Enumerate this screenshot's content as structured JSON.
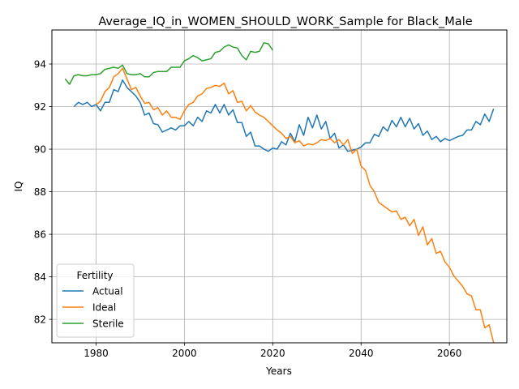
{
  "chart_data": {
    "type": "line",
    "title": "Average_IQ_in_WOMEN_SHOULD_WORK_Sample for Black_Male",
    "xlabel": "Years",
    "ylabel": "IQ",
    "xlim": [
      1970,
      2073
    ],
    "ylim": [
      80.9,
      95.6
    ],
    "xticks": [
      1980,
      2000,
      2020,
      2040,
      2060
    ],
    "yticks": [
      82,
      84,
      86,
      88,
      90,
      92,
      94
    ],
    "grid": true,
    "legend": {
      "title": "Fertility",
      "position": "lower-left"
    },
    "series": [
      {
        "name": "Actual",
        "color": "#1f77b4",
        "x": [
          1975,
          1976,
          1977,
          1978,
          1979,
          1980,
          1981,
          1982,
          1983,
          1984,
          1985,
          1986,
          1987,
          1988,
          1989,
          1990,
          1991,
          1992,
          1993,
          1994,
          1995,
          1996,
          1997,
          1998,
          1999,
          2000,
          2001,
          2002,
          2003,
          2004,
          2005,
          2006,
          2007,
          2008,
          2009,
          2010,
          2011,
          2012,
          2013,
          2014,
          2015,
          2016,
          2017,
          2018,
          2019,
          2020,
          2021,
          2022,
          2023,
          2024,
          2025,
          2026,
          2027,
          2028,
          2029,
          2030,
          2031,
          2032,
          2033,
          2034,
          2035,
          2036,
          2037,
          2038,
          2039,
          2040,
          2041,
          2042,
          2043,
          2044,
          2045,
          2046,
          2047,
          2048,
          2049,
          2050,
          2051,
          2052,
          2053,
          2054,
          2055,
          2056,
          2057,
          2058,
          2059,
          2060,
          2061,
          2062,
          2063,
          2064,
          2065,
          2066,
          2067,
          2068,
          2069,
          2070
        ],
        "y": [
          92.0,
          92.2,
          92.1,
          92.2,
          92.0,
          92.1,
          91.8,
          92.2,
          92.2,
          92.8,
          92.7,
          93.25,
          92.9,
          92.7,
          92.5,
          92.2,
          91.6,
          91.7,
          91.2,
          91.15,
          90.8,
          90.9,
          91.0,
          90.9,
          91.1,
          91.1,
          91.3,
          91.1,
          91.5,
          91.3,
          91.8,
          91.7,
          92.1,
          91.7,
          92.1,
          91.6,
          91.85,
          91.25,
          91.25,
          90.6,
          90.8,
          90.15,
          90.15,
          90.0,
          89.9,
          90.05,
          90.0,
          90.35,
          90.2,
          90.75,
          90.35,
          91.15,
          90.65,
          91.5,
          91.0,
          91.6,
          90.95,
          91.3,
          90.5,
          90.75,
          90.05,
          90.2,
          89.9,
          89.95,
          90.0,
          90.1,
          90.3,
          90.3,
          90.7,
          90.6,
          91.05,
          90.85,
          91.35,
          91.05,
          91.5,
          91.05,
          91.45,
          90.95,
          91.2,
          90.65,
          90.85,
          90.45,
          90.6,
          90.35,
          90.5,
          90.4,
          90.5,
          90.6,
          90.65,
          90.9,
          90.9,
          91.3,
          91.15,
          91.65,
          91.3,
          91.9
        ]
      },
      {
        "name": "Ideal",
        "color": "#ff7f0e",
        "x": [
          1980,
          1981,
          1982,
          1983,
          1984,
          1985,
          1986,
          1987,
          1988,
          1989,
          1990,
          1991,
          1992,
          1993,
          1994,
          1995,
          1996,
          1997,
          1998,
          1999,
          2000,
          2001,
          2002,
          2003,
          2004,
          2005,
          2006,
          2007,
          2008,
          2009,
          2010,
          2011,
          2012,
          2013,
          2014,
          2015,
          2016,
          2017,
          2018,
          2019,
          2020,
          2021,
          2022,
          2023,
          2024,
          2025,
          2026,
          2027,
          2028,
          2029,
          2030,
          2031,
          2032,
          2033,
          2034,
          2035,
          2036,
          2037,
          2038,
          2039,
          2040,
          2041,
          2042,
          2043,
          2044,
          2045,
          2046,
          2047,
          2048,
          2049,
          2050,
          2051,
          2052,
          2053,
          2054,
          2055,
          2056,
          2057,
          2058,
          2059,
          2060,
          2061,
          2062,
          2063,
          2064,
          2065,
          2066,
          2067,
          2068,
          2069,
          2070
        ],
        "y": [
          92.1,
          92.25,
          92.7,
          92.9,
          93.4,
          93.55,
          93.8,
          93.3,
          92.8,
          92.9,
          92.5,
          92.15,
          92.2,
          91.85,
          91.95,
          91.6,
          91.8,
          91.5,
          91.5,
          91.4,
          91.8,
          92.1,
          92.2,
          92.5,
          92.6,
          92.85,
          92.9,
          93.0,
          92.95,
          93.1,
          92.6,
          92.75,
          92.2,
          92.25,
          91.8,
          92.05,
          91.75,
          91.6,
          91.5,
          91.3,
          91.1,
          90.9,
          90.75,
          90.5,
          90.6,
          90.3,
          90.4,
          90.15,
          90.25,
          90.2,
          90.3,
          90.45,
          90.4,
          90.5,
          90.3,
          90.45,
          90.2,
          90.45,
          89.8,
          90.0,
          89.2,
          89.0,
          88.3,
          88.0,
          87.5,
          87.35,
          87.2,
          87.05,
          87.1,
          86.7,
          86.8,
          86.4,
          86.7,
          85.95,
          86.35,
          85.5,
          85.8,
          85.1,
          85.2,
          84.7,
          84.45,
          84.05,
          83.8,
          83.55,
          83.2,
          83.1,
          82.45,
          82.45,
          81.6,
          81.75,
          80.9
        ]
      },
      {
        "name": "Sterile",
        "color": "#2ca02c",
        "x": [
          1973,
          1974,
          1975,
          1976,
          1977,
          1978,
          1979,
          1980,
          1981,
          1982,
          1983,
          1984,
          1985,
          1986,
          1987,
          1988,
          1989,
          1990,
          1991,
          1992,
          1993,
          1994,
          1995,
          1996,
          1997,
          1998,
          1999,
          2000,
          2001,
          2002,
          2003,
          2004,
          2005,
          2006,
          2007,
          2008,
          2009,
          2010,
          2011,
          2012,
          2013,
          2014,
          2015,
          2016,
          2017,
          2018,
          2019,
          2020
        ],
        "y": [
          93.3,
          93.05,
          93.45,
          93.5,
          93.45,
          93.45,
          93.5,
          93.5,
          93.55,
          93.75,
          93.8,
          93.85,
          93.8,
          93.95,
          93.55,
          93.5,
          93.5,
          93.55,
          93.4,
          93.4,
          93.6,
          93.65,
          93.65,
          93.65,
          93.85,
          93.85,
          93.85,
          94.15,
          94.25,
          94.4,
          94.3,
          94.15,
          94.2,
          94.25,
          94.55,
          94.6,
          94.8,
          94.9,
          94.8,
          94.75,
          94.4,
          94.2,
          94.6,
          94.55,
          94.6,
          95.0,
          94.95,
          94.65
        ]
      }
    ]
  }
}
